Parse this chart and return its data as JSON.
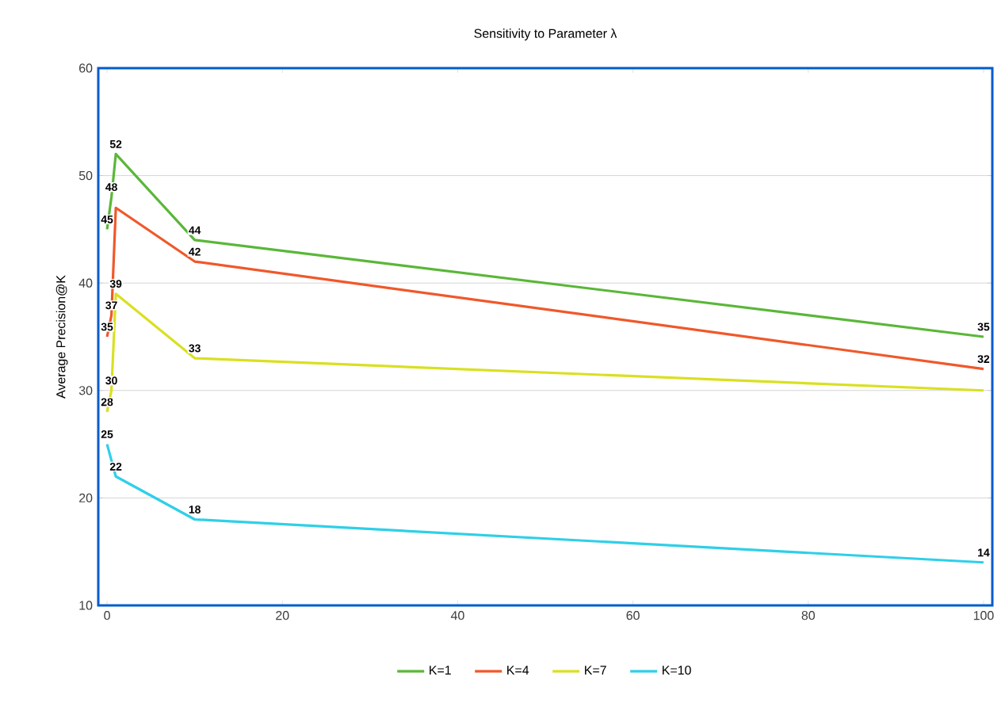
{
  "chart_data": {
    "type": "line",
    "title": "Sensitivity to Parameter λ",
    "ylabel": "Average Precision@K",
    "xlim": [
      -1,
      101
    ],
    "xticks": [
      0,
      20,
      40,
      60,
      80,
      100
    ],
    "ylim": [
      10,
      60
    ],
    "yticks": [
      10,
      20,
      30,
      40,
      50,
      60
    ],
    "grid": "y",
    "legend": "bottom",
    "series": [
      {
        "name": "K=1",
        "color": "#5ab738",
        "x": [
          0,
          0.5,
          1,
          10,
          100
        ],
        "values": [
          45,
          48,
          52,
          44,
          35
        ],
        "value_labels": [
          "45",
          "48",
          "52",
          "44",
          "35"
        ]
      },
      {
        "name": "K=4",
        "color": "#f0582a",
        "x": [
          0,
          0.5,
          1,
          10,
          100
        ],
        "values": [
          35,
          37,
          47,
          42,
          32
        ],
        "value_labels": [
          "35",
          "37",
          null,
          "42",
          "32"
        ]
      },
      {
        "name": "K=7",
        "color": "#d9e021",
        "x": [
          0,
          0.5,
          1,
          10,
          100
        ],
        "values": [
          28,
          30,
          39,
          33,
          30
        ],
        "value_labels": [
          "28",
          "30",
          "39",
          "33",
          null
        ]
      },
      {
        "name": "K=10",
        "color": "#2fcfe8",
        "x": [
          0,
          1,
          10,
          100
        ],
        "values": [
          25,
          22,
          18,
          14
        ],
        "value_labels": [
          "25",
          "22",
          "18",
          "14"
        ]
      }
    ]
  }
}
